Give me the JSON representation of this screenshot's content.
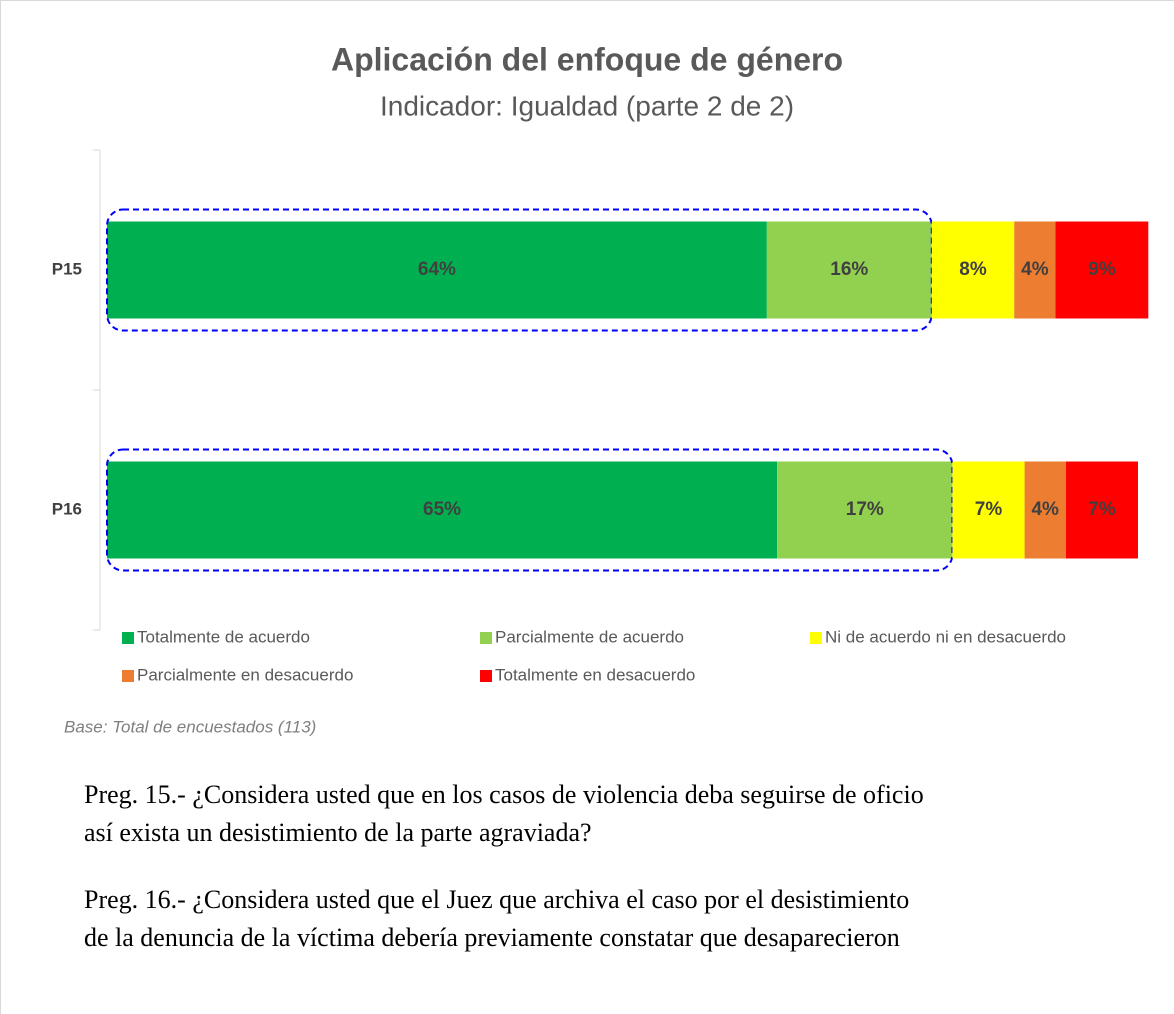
{
  "chart_data": {
    "type": "stacked-bar-horizontal",
    "title": "Aplicación del enfoque de género",
    "subtitle": "Indicador: Igualdad (parte 2 de 2)",
    "categories": [
      "P15",
      "P16"
    ],
    "series": [
      {
        "name": "Totalmente de acuerdo",
        "color": "#00b050",
        "values": [
          64,
          65
        ],
        "value_labels": [
          "64%",
          "65%"
        ]
      },
      {
        "name": "Parcialmente de acuerdo",
        "color": "#92d050",
        "values": [
          16,
          17
        ],
        "value_labels": [
          "16%",
          "17%"
        ]
      },
      {
        "name": "Ni de acuerdo ni en desacuerdo",
        "color": "#ffff00",
        "values": [
          8,
          7
        ],
        "value_labels": [
          "8%",
          "7%"
        ]
      },
      {
        "name": "Parcialmente en desacuerdo",
        "color": "#ed7d31",
        "values": [
          4,
          4
        ],
        "value_labels": [
          "4%",
          "4%"
        ]
      },
      {
        "name": "Totalmente en desacuerdo",
        "color": "#ff0000",
        "values": [
          9,
          7
        ],
        "value_labels": [
          "9%",
          "7%"
        ]
      }
    ],
    "xlim": [
      0,
      100
    ],
    "note": "Base: Total de encuestados (113)"
  },
  "questions": [
    [
      "Preg. 15.- ¿Considera usted que en los casos de violencia deba seguirse de oficio",
      "así exista un desistimiento de la parte agraviada?"
    ],
    [
      "Preg. 16.- ¿Considera usted que el Juez que archiva el caso por el desistimiento",
      "de la denuncia de la víctima debería previamente constatar que desaparecieron"
    ]
  ]
}
